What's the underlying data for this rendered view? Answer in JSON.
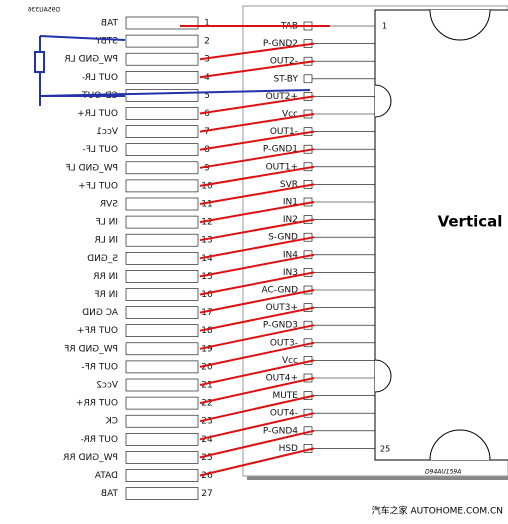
{
  "header": {
    "code": "D95AU336"
  },
  "left_pins": {
    "labels": [
      "TAB",
      "STBY",
      "PW_GND LR",
      "OUT LR-",
      "CD-OUT",
      "OUT LR+",
      "Vcc1",
      "OUT LF-",
      "PW_GND LF",
      "OUT LF+",
      "SVR",
      "IN LF",
      "IN LR",
      "S_GND",
      "IN RR",
      "IN RF",
      "AC GND",
      "OUT RF+",
      "PW_GND RF",
      "OUT RF-",
      "Vcc2",
      "OUT RR+",
      "CK",
      "OUT RR-",
      "PW_GND RR",
      "DATA",
      "TAB"
    ],
    "numbers": [
      "1",
      "2",
      "3",
      "4",
      "5",
      "6",
      "7",
      "8",
      "9",
      "10",
      "11",
      "12",
      "13",
      "14",
      "15",
      "16",
      "17",
      "18",
      "19",
      "20",
      "21",
      "22",
      "23",
      "24",
      "25",
      "26",
      "27"
    ]
  },
  "right_pins": {
    "labels": [
      "TAB",
      "P-GND2",
      "OUT2-",
      "ST-BY",
      "OUT2+",
      "Vcc",
      "OUT1-",
      "P-GND1",
      "OUT1+",
      "SVR",
      "IN1",
      "IN2",
      "S-GND",
      "IN4",
      "IN3",
      "AC-GND",
      "OUT3+",
      "P-GND3",
      "OUT3-",
      "Vcc",
      "OUT4+",
      "MUTE",
      "OUT4-",
      "P-GND4",
      "HSD"
    ]
  },
  "chip": {
    "label": "Vertical",
    "pin_first": "1",
    "pin_last": "25",
    "code": "D94AU159A"
  },
  "watermark": "汽车之家 AUTOHOME.COM.CN"
}
